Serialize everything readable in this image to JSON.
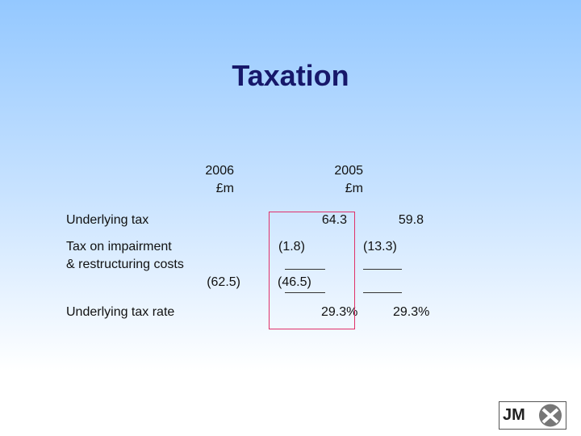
{
  "title": "Taxation",
  "columns": [
    {
      "year": "2006",
      "unit": "£m"
    },
    {
      "year": "2005",
      "unit": "£m"
    }
  ],
  "rows": [
    {
      "label": [
        "Underlying tax"
      ],
      "values": [
        "64.3",
        "59.8"
      ]
    },
    {
      "label": [
        "Tax on impairment",
        "& restructuring costs"
      ],
      "values": [
        "(1.8)",
        "(13.3)"
      ],
      "totals": [
        "(62.5)",
        "(46.5)"
      ]
    },
    {
      "label": [
        "Underlying tax rate"
      ],
      "values": [
        "29.3%",
        "29.3%"
      ]
    }
  ],
  "logo": "JM"
}
